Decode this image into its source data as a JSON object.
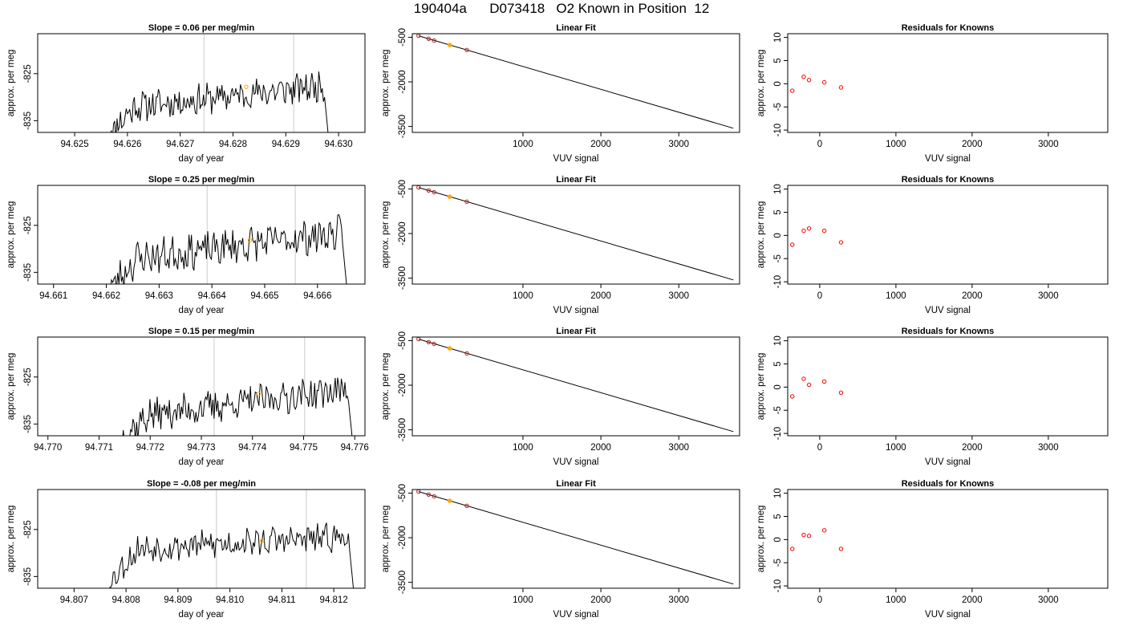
{
  "title": "190404a      D073418   O2 Known in Position  12",
  "colors": {
    "trace": "#000000",
    "grid_line": "#d3d3d3",
    "highlight": "#ffa500",
    "residual": "#ff0000",
    "frame": "#000000"
  },
  "chart_data": [
    {
      "panel": "slope",
      "type": "line",
      "title": "Slope =  0.06  per meg/min",
      "xlabel": "day of year",
      "ylabel": "approx. per meg",
      "xlim": [
        94.6243,
        94.6305
      ],
      "ylim": [
        -837.5,
        -816.5
      ],
      "xticks": [
        94.625,
        94.626,
        94.627,
        94.628,
        94.629,
        94.63
      ],
      "xtick_labels": [
        "94.625",
        "94.626",
        "94.627",
        "94.628",
        "94.629",
        "94.630"
      ],
      "yticks": [
        -825,
        -835
      ],
      "ytick_labels": [
        "-825",
        "-835"
      ],
      "window": [
        94.62745,
        94.62915
      ],
      "x_start": 94.62565,
      "x_end": 94.6298,
      "trend": {
        "y0": -837.5,
        "y1": -832,
        "y_end": -827.5,
        "y_last": -837.5,
        "noise": 1.3,
        "seed": 11
      },
      "marker": {
        "x": 94.62825,
        "y": -827.8
      }
    },
    {
      "panel": "fit",
      "type": "line",
      "title": "Linear Fit",
      "xlabel": "VUV signal",
      "ylabel": "approx. per meg",
      "xlim": [
        -420,
        3780
      ],
      "ylim": [
        -3700,
        -380
      ],
      "xticks": [
        1000,
        2000,
        3000
      ],
      "xtick_labels": [
        "1000",
        "2000",
        "3000"
      ],
      "yticks": [
        -500,
        -2000,
        -3500
      ],
      "ytick_labels": [
        "-500",
        "-2000",
        "-3500"
      ],
      "line": {
        "x": [
          -340,
          3700
        ],
        "y": [
          -450,
          -3560
        ]
      },
      "points": {
        "x": [
          -340,
          -210,
          -140,
          60,
          280
        ],
        "y": [
          -450,
          -550,
          -610,
          -760,
          -930
        ]
      },
      "highlight_index": 3
    },
    {
      "panel": "residuals",
      "type": "scatter",
      "title": "Residuals for Knowns",
      "xlabel": "VUV signal",
      "ylabel": "approx. per meg",
      "xlim": [
        -420,
        3780
      ],
      "ylim": [
        -10.5,
        10.8
      ],
      "xticks": [
        0,
        1000,
        2000,
        3000
      ],
      "xtick_labels": [
        "0",
        "1000",
        "2000",
        "3000"
      ],
      "yticks": [
        -10,
        -5,
        0,
        5,
        10
      ],
      "ytick_labels": [
        "-10",
        "-5",
        "0",
        "5",
        "10"
      ],
      "points": {
        "x": [
          -360,
          -210,
          -140,
          60,
          280
        ],
        "y": [
          -1.5,
          1.5,
          0.8,
          0.3,
          -0.8
        ]
      }
    },
    {
      "panel": "slope",
      "type": "line",
      "title": "Slope =  0.25  per meg/min",
      "xlabel": "day of year",
      "ylabel": "approx. per meg",
      "xlim": [
        94.6607,
        94.6669
      ],
      "ylim": [
        -837.5,
        -816.5
      ],
      "xticks": [
        94.661,
        94.662,
        94.663,
        94.664,
        94.665,
        94.666
      ],
      "xtick_labels": [
        "94.661",
        "94.662",
        "94.663",
        "94.664",
        "94.665",
        "94.666"
      ],
      "yticks": [
        -825,
        -835
      ],
      "ytick_labels": [
        "-825",
        "-835"
      ],
      "window": [
        94.66391,
        94.66558
      ],
      "x_start": 94.66205,
      "x_end": 94.66655,
      "trend": {
        "y0": -838.5,
        "y1": -832,
        "y_end": -826.5,
        "y_last": -837.5,
        "noise": 1.5,
        "seed": 23
      },
      "marker": {
        "x": 94.66472,
        "y": -828.2
      }
    },
    {
      "panel": "fit",
      "type": "line",
      "title": "Linear Fit",
      "xlabel": "VUV signal",
      "ylabel": "approx. per meg",
      "xlim": [
        -420,
        3780
      ],
      "ylim": [
        -3700,
        -380
      ],
      "xticks": [
        1000,
        2000,
        3000
      ],
      "xtick_labels": [
        "1000",
        "2000",
        "3000"
      ],
      "yticks": [
        -500,
        -2000,
        -3500
      ],
      "ytick_labels": [
        "-500",
        "-2000",
        "-3500"
      ],
      "line": {
        "x": [
          -340,
          3700
        ],
        "y": [
          -450,
          -3560
        ]
      },
      "points": {
        "x": [
          -340,
          -210,
          -140,
          60,
          280
        ],
        "y": [
          -450,
          -550,
          -610,
          -760,
          -930
        ]
      },
      "highlight_index": 3
    },
    {
      "panel": "residuals",
      "type": "scatter",
      "title": "Residuals for Knowns",
      "xlabel": "VUV signal",
      "ylabel": "approx. per meg",
      "xlim": [
        -420,
        3780
      ],
      "ylim": [
        -10.5,
        10.8
      ],
      "xticks": [
        0,
        1000,
        2000,
        3000
      ],
      "xtick_labels": [
        "0",
        "1000",
        "2000",
        "3000"
      ],
      "yticks": [
        -10,
        -5,
        0,
        5,
        10
      ],
      "ytick_labels": [
        "-10",
        "-5",
        "0",
        "5",
        "10"
      ],
      "points": {
        "x": [
          -360,
          -210,
          -140,
          60,
          280
        ],
        "y": [
          -2.0,
          1.0,
          1.5,
          1.0,
          -1.5
        ]
      }
    },
    {
      "panel": "slope",
      "type": "line",
      "title": "Slope =  0.15  per meg/min",
      "xlabel": "day of year",
      "ylabel": "approx. per meg",
      "xlim": [
        94.7698,
        94.7762
      ],
      "ylim": [
        -837.5,
        -816.5
      ],
      "xticks": [
        94.77,
        94.771,
        94.772,
        94.773,
        94.774,
        94.775,
        94.776
      ],
      "xtick_labels": [
        "94.770",
        "94.771",
        "94.772",
        "94.773",
        "94.774",
        "94.775",
        "94.776"
      ],
      "yticks": [
        -825,
        -835
      ],
      "ytick_labels": [
        "-825",
        "-835"
      ],
      "window": [
        94.77325,
        94.77502
      ],
      "x_start": 94.77145,
      "x_end": 94.77595,
      "trend": {
        "y0": -838,
        "y1": -833,
        "y_end": -827.5,
        "y_last": -838,
        "noise": 1.4,
        "seed": 37
      },
      "marker": {
        "x": 94.77412,
        "y": -828.6
      }
    },
    {
      "panel": "fit",
      "type": "line",
      "title": "Linear Fit",
      "xlabel": "VUV signal",
      "ylabel": "approx. per meg",
      "xlim": [
        -420,
        3780
      ],
      "ylim": [
        -3700,
        -380
      ],
      "xticks": [
        1000,
        2000,
        3000
      ],
      "xtick_labels": [
        "1000",
        "2000",
        "3000"
      ],
      "yticks": [
        -500,
        -2000,
        -3500
      ],
      "ytick_labels": [
        "-500",
        "-2000",
        "-3500"
      ],
      "line": {
        "x": [
          -340,
          3700
        ],
        "y": [
          -450,
          -3560
        ]
      },
      "points": {
        "x": [
          -340,
          -210,
          -140,
          60,
          280
        ],
        "y": [
          -450,
          -550,
          -610,
          -760,
          -930
        ]
      },
      "highlight_index": 3
    },
    {
      "panel": "residuals",
      "type": "scatter",
      "title": "Residuals for Knowns",
      "xlabel": "VUV signal",
      "ylabel": "approx. per meg",
      "xlim": [
        -420,
        3780
      ],
      "ylim": [
        -10.5,
        10.8
      ],
      "xticks": [
        0,
        1000,
        2000,
        3000
      ],
      "xtick_labels": [
        "0",
        "1000",
        "2000",
        "3000"
      ],
      "yticks": [
        -10,
        -5,
        0,
        5,
        10
      ],
      "ytick_labels": [
        "-10",
        "-5",
        "0",
        "5",
        "10"
      ],
      "points": {
        "x": [
          -360,
          -210,
          -140,
          60,
          280
        ],
        "y": [
          -2.0,
          1.8,
          0.5,
          1.2,
          -1.2
        ]
      }
    },
    {
      "panel": "slope",
      "type": "line",
      "title": "Slope =  -0.08  per meg/min",
      "xlabel": "day of year",
      "ylabel": "approx. per meg",
      "xlim": [
        94.8063,
        94.8126
      ],
      "ylim": [
        -837.5,
        -816.5
      ],
      "xticks": [
        94.807,
        94.808,
        94.809,
        94.81,
        94.811,
        94.812
      ],
      "xtick_labels": [
        "94.807",
        "94.808",
        "94.809",
        "94.810",
        "94.811",
        "94.812"
      ],
      "yticks": [
        -825,
        -835
      ],
      "ytick_labels": [
        "-825",
        "-835"
      ],
      "window": [
        94.80974,
        94.81147
      ],
      "x_start": 94.80768,
      "x_end": 94.81238,
      "trend": {
        "y0": -836,
        "y1": -829,
        "y_end": -826.5,
        "y_last": -838,
        "noise": 1.2,
        "seed": 53
      },
      "marker": {
        "x": 94.81062,
        "y": -827.4
      }
    },
    {
      "panel": "fit",
      "type": "line",
      "title": "Linear Fit",
      "xlabel": "VUV signal",
      "ylabel": "approx. per meg",
      "xlim": [
        -420,
        3780
      ],
      "ylim": [
        -3700,
        -380
      ],
      "xticks": [
        1000,
        2000,
        3000
      ],
      "xtick_labels": [
        "1000",
        "2000",
        "3000"
      ],
      "yticks": [
        -500,
        -2000,
        -3500
      ],
      "ytick_labels": [
        "-500",
        "-2000",
        "-3500"
      ],
      "line": {
        "x": [
          -340,
          3700
        ],
        "y": [
          -450,
          -3560
        ]
      },
      "points": {
        "x": [
          -340,
          -210,
          -140,
          60,
          280
        ],
        "y": [
          -450,
          -550,
          -610,
          -760,
          -930
        ]
      },
      "highlight_index": 3
    },
    {
      "panel": "residuals",
      "type": "scatter",
      "title": "Residuals for Knowns",
      "xlabel": "VUV signal",
      "ylabel": "approx. per meg",
      "xlim": [
        -420,
        3780
      ],
      "ylim": [
        -10.5,
        10.8
      ],
      "xticks": [
        0,
        1000,
        2000,
        3000
      ],
      "xtick_labels": [
        "0",
        "1000",
        "2000",
        "3000"
      ],
      "yticks": [
        -10,
        -5,
        0,
        5,
        10
      ],
      "ytick_labels": [
        "-10",
        "-5",
        "0",
        "5",
        "10"
      ],
      "points": {
        "x": [
          -360,
          -210,
          -140,
          60,
          280
        ],
        "y": [
          -2.0,
          1.0,
          0.8,
          2.0,
          -2.0
        ]
      }
    }
  ]
}
